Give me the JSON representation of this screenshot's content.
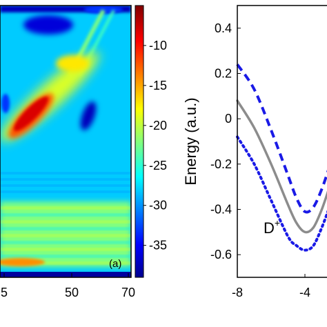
{
  "chart_data": [
    {
      "type": "heatmap",
      "panel_label": "(a)",
      "x_ticks": [
        "5",
        "50",
        "70"
      ],
      "colorbar": {
        "ticks": [
          -10,
          -15,
          -20,
          -25,
          -30,
          -35
        ],
        "tick_labels": [
          "-10",
          "-15",
          "-20",
          "-25",
          "-30",
          "-35"
        ],
        "range": [
          -39,
          -5
        ],
        "colormap": "jet"
      },
      "features": [
        {
          "name": "main-ridge",
          "value": -8
        },
        {
          "name": "secondary-ridge",
          "value": -19
        },
        {
          "name": "right-lobe",
          "value": -37
        },
        {
          "name": "top-lobe",
          "value": -36
        },
        {
          "name": "bottom-band",
          "value": -22
        },
        {
          "name": "background",
          "value": -28
        }
      ]
    },
    {
      "type": "line",
      "ylabel": "Energy (a.u.)",
      "xlim": [
        -8,
        -2.2
      ],
      "ylim": [
        -0.7,
        0.5
      ],
      "x_ticks": [
        -8,
        -4
      ],
      "x_tick_labels": [
        "-8",
        "-4"
      ],
      "y_ticks": [
        0.4,
        0.2,
        0,
        -0.2,
        -0.4,
        -0.6
      ],
      "y_tick_labels": [
        "0.4",
        "0.2",
        "0",
        "-0.2",
        "-0.4",
        "-0.6"
      ],
      "annotation": "D",
      "annotation_sup": "+",
      "series": [
        {
          "style": "dashed",
          "color": "#1a1ae6",
          "x": [
            -8,
            -7,
            -6,
            -5,
            -4.5,
            -4,
            -3.5,
            -3,
            -2.5
          ],
          "y": [
            0.24,
            0.13,
            -0.05,
            -0.25,
            -0.35,
            -0.41,
            -0.39,
            -0.31,
            -0.2
          ]
        },
        {
          "style": "solid",
          "color": "#8c8c8c",
          "x": [
            -8,
            -7,
            -6,
            -5,
            -4.5,
            -4,
            -3.5,
            -3,
            -2.5
          ],
          "y": [
            0.08,
            -0.04,
            -0.2,
            -0.38,
            -0.46,
            -0.5,
            -0.48,
            -0.4,
            -0.29
          ]
        },
        {
          "style": "dotted",
          "color": "#1a1ae6",
          "x": [
            -8,
            -7,
            -6,
            -5,
            -4.5,
            -4,
            -3.5,
            -3,
            -2.5
          ],
          "y": [
            -0.08,
            -0.2,
            -0.36,
            -0.52,
            -0.56,
            -0.58,
            -0.56,
            -0.48,
            -0.38
          ]
        }
      ]
    }
  ]
}
